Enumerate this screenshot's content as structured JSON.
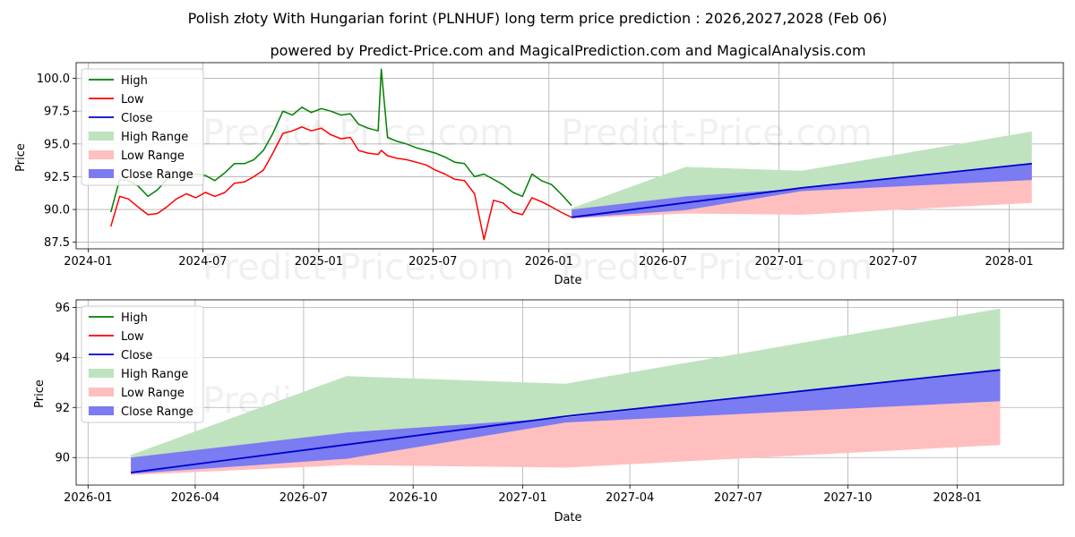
{
  "title": "Polish złoty With Hungarian forint (PLNHUF) long term price prediction : 2026,2027,2028 (Feb 06)",
  "subtitle": "powered by Predict-Price.com and MagicalPrediction.com and MagicalAnalysis.com",
  "watermark": "Predict-Price.com",
  "colors": {
    "high": "#008000",
    "low": "#ff0000",
    "close": "#0000cc",
    "high_range": "#bfe3bf",
    "low_range": "#ffbfbf",
    "close_range": "#7b7bf2"
  },
  "legend": [
    "High",
    "Low",
    "Close",
    "High Range",
    "Low Range",
    "Close Range"
  ],
  "chart_data": [
    {
      "type": "line",
      "id": "top",
      "xlabel": "Date",
      "ylabel": "Price",
      "xlim": [
        "2023-12-13",
        "2028-03-27"
      ],
      "ylim": [
        87.0,
        101.2
      ],
      "yticks": [
        87.5,
        90.0,
        92.5,
        95.0,
        97.5,
        100.0
      ],
      "ytick_labels": [
        "87.5",
        "90.0",
        "92.5",
        "95.0",
        "97.5",
        "100.0"
      ],
      "xticks": [
        "2024-01-01",
        "2024-07-01",
        "2025-01-01",
        "2025-07-01",
        "2026-01-01",
        "2026-07-01",
        "2027-01-01",
        "2027-07-01",
        "2028-01-01"
      ],
      "xtick_labels": [
        "2024-01",
        "2024-07",
        "2025-01",
        "2025-07",
        "2026-01",
        "2026-07",
        "2027-01",
        "2027-07",
        "2028-01"
      ],
      "history": {
        "dates": [
          "2024-02-06",
          "2024-02-20",
          "2024-03-05",
          "2024-03-20",
          "2024-04-05",
          "2024-04-20",
          "2024-05-05",
          "2024-05-20",
          "2024-06-05",
          "2024-06-20",
          "2024-07-05",
          "2024-07-20",
          "2024-08-05",
          "2024-08-20",
          "2024-09-05",
          "2024-09-20",
          "2024-10-05",
          "2024-10-20",
          "2024-11-05",
          "2024-11-20",
          "2024-12-05",
          "2024-12-20",
          "2025-01-05",
          "2025-01-20",
          "2025-02-05",
          "2025-02-20",
          "2025-03-05",
          "2025-03-20",
          "2025-04-05",
          "2025-04-10",
          "2025-04-20",
          "2025-05-05",
          "2025-05-20",
          "2025-06-05",
          "2025-06-20",
          "2025-07-05",
          "2025-07-20",
          "2025-08-05",
          "2025-08-20",
          "2025-09-05",
          "2025-09-20",
          "2025-10-05",
          "2025-10-20",
          "2025-11-05",
          "2025-11-20",
          "2025-12-05",
          "2025-12-20",
          "2026-01-05",
          "2026-01-20",
          "2026-02-06"
        ],
        "high": [
          89.8,
          92.3,
          92.2,
          91.8,
          91.0,
          91.5,
          92.3,
          92.5,
          92.8,
          92.7,
          92.6,
          92.2,
          92.8,
          93.5,
          93.5,
          93.8,
          94.5,
          95.8,
          97.5,
          97.2,
          97.8,
          97.4,
          97.7,
          97.5,
          97.2,
          97.3,
          96.5,
          96.2,
          96.0,
          100.7,
          95.5,
          95.2,
          95.0,
          94.7,
          94.5,
          94.3,
          94.0,
          93.6,
          93.5,
          92.5,
          92.7,
          92.3,
          91.9,
          91.3,
          91.0,
          92.7,
          92.2,
          91.9,
          91.2,
          90.3
        ],
        "low": [
          88.7,
          91.0,
          90.8,
          90.2,
          89.6,
          89.7,
          90.2,
          90.8,
          91.2,
          90.9,
          91.3,
          91.0,
          91.3,
          92.0,
          92.1,
          92.5,
          93.0,
          94.3,
          95.8,
          96.0,
          96.3,
          96.0,
          96.2,
          95.7,
          95.4,
          95.5,
          94.5,
          94.3,
          94.2,
          94.5,
          94.1,
          93.9,
          93.8,
          93.6,
          93.4,
          93.0,
          92.7,
          92.3,
          92.2,
          91.2,
          87.7,
          90.7,
          90.5,
          89.8,
          89.6,
          90.9,
          90.6,
          90.2,
          89.8,
          89.4
        ]
      },
      "forecast": {
        "dates": [
          "2026-02-06",
          "2026-08-06",
          "2027-02-06",
          "2028-02-06"
        ],
        "high_range_upper": [
          90.1,
          93.25,
          92.95,
          95.95
        ],
        "low_range_lower": [
          89.3,
          89.7,
          89.6,
          90.5
        ],
        "close_range_upper": [
          90.0,
          91.0,
          91.6,
          93.5
        ],
        "close_range_lower": [
          89.35,
          89.95,
          91.4,
          92.25
        ],
        "close": [
          89.4,
          90.5,
          91.65,
          93.5
        ],
        "close_points": [
          "2026-02-06",
          "2027-02-06",
          "2028-02-06"
        ],
        "close_values": [
          89.4,
          91.65,
          93.5
        ]
      }
    },
    {
      "type": "line",
      "id": "bottom",
      "xlabel": "Date",
      "ylabel": "Price",
      "xlim": [
        "2025-12-22",
        "2028-03-30"
      ],
      "ylim": [
        88.9,
        96.3
      ],
      "yticks": [
        90,
        92,
        94,
        96
      ],
      "ytick_labels": [
        "90",
        "92",
        "94",
        "96"
      ],
      "xticks": [
        "2026-01-01",
        "2026-04-01",
        "2026-07-01",
        "2026-10-01",
        "2027-01-01",
        "2027-04-01",
        "2027-07-01",
        "2027-10-01",
        "2028-01-01"
      ],
      "xtick_labels": [
        "2026-01",
        "2026-04",
        "2026-07",
        "2026-10",
        "2027-01",
        "2027-04",
        "2027-07",
        "2027-10",
        "2028-01"
      ],
      "forecast": {
        "dates": [
          "2026-02-06",
          "2026-08-06",
          "2027-02-06",
          "2028-02-06"
        ],
        "high_range_upper": [
          90.1,
          93.25,
          92.95,
          95.95
        ],
        "low_range_lower": [
          89.3,
          89.7,
          89.6,
          90.5
        ],
        "close_range_upper": [
          90.0,
          91.0,
          91.6,
          93.5
        ],
        "close_range_lower": [
          89.35,
          89.95,
          91.4,
          92.25
        ],
        "close_points": [
          "2026-02-06",
          "2027-02-06",
          "2028-02-06"
        ],
        "close_values": [
          89.4,
          91.65,
          93.5
        ]
      }
    }
  ]
}
